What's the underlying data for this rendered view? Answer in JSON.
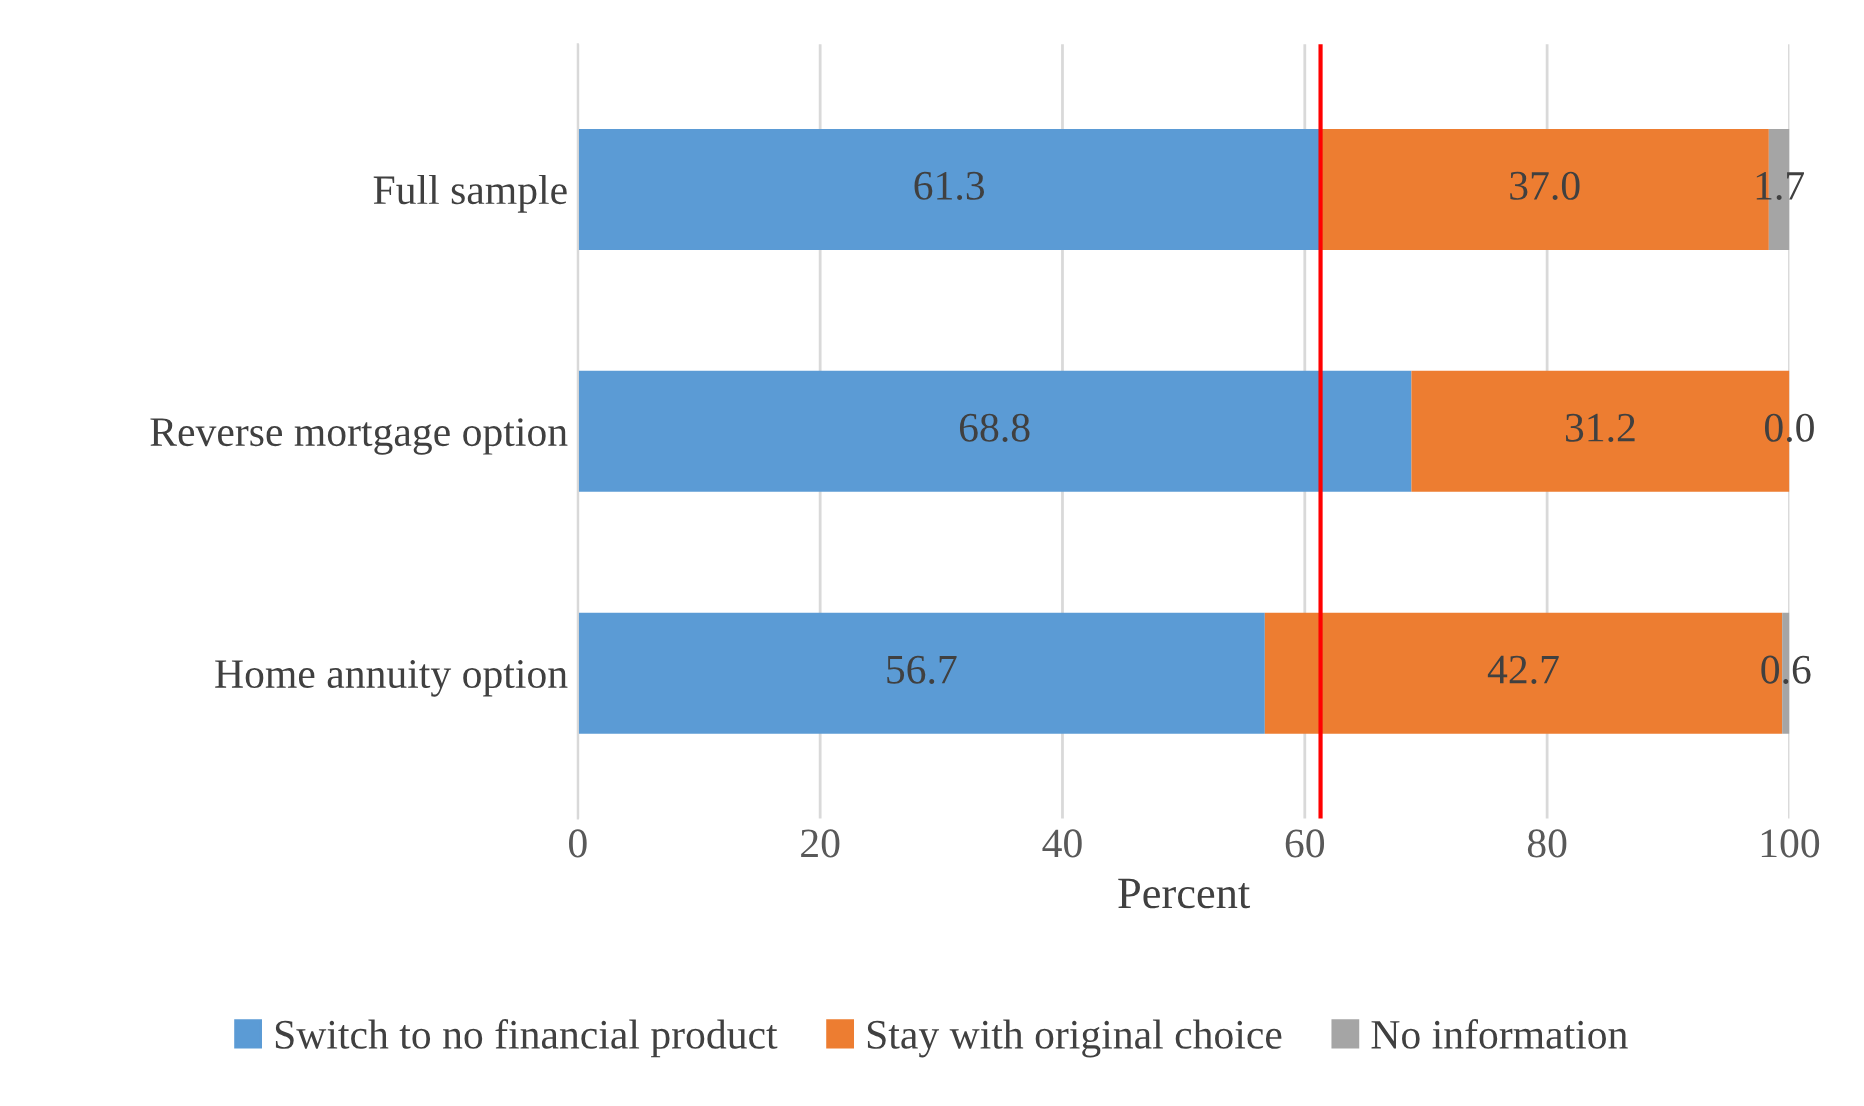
{
  "chart_data": {
    "type": "bar",
    "orientation": "horizontal",
    "stacked": true,
    "xlabel": "Percent",
    "categories": [
      "Full sample",
      "Reverse mortgage option",
      "Home annuity option"
    ],
    "series": [
      {
        "name": "Switch to no financial product",
        "color": "#5b9bd5",
        "values": [
          61.3,
          68.8,
          56.7
        ],
        "value_labels": [
          "61.3",
          "68.8",
          "56.7"
        ]
      },
      {
        "name": "Stay with original choice",
        "color": "#ed7d31",
        "values": [
          37.0,
          31.2,
          42.7
        ],
        "value_labels": [
          "37.0",
          "31.2",
          "42.7"
        ]
      },
      {
        "name": "No information",
        "color": "#a5a5a5",
        "values": [
          1.7,
          0.0,
          0.6
        ],
        "value_labels": [
          "1.7",
          "0.0",
          "0.6"
        ]
      }
    ],
    "xlim": [
      0,
      100
    ],
    "xticks": [
      0,
      20,
      40,
      60,
      80,
      100
    ],
    "grid": "x",
    "legend": "bottom",
    "ref_lines": [
      {
        "axis": "x",
        "value": 61.3,
        "color": "#ff0000"
      }
    ]
  }
}
